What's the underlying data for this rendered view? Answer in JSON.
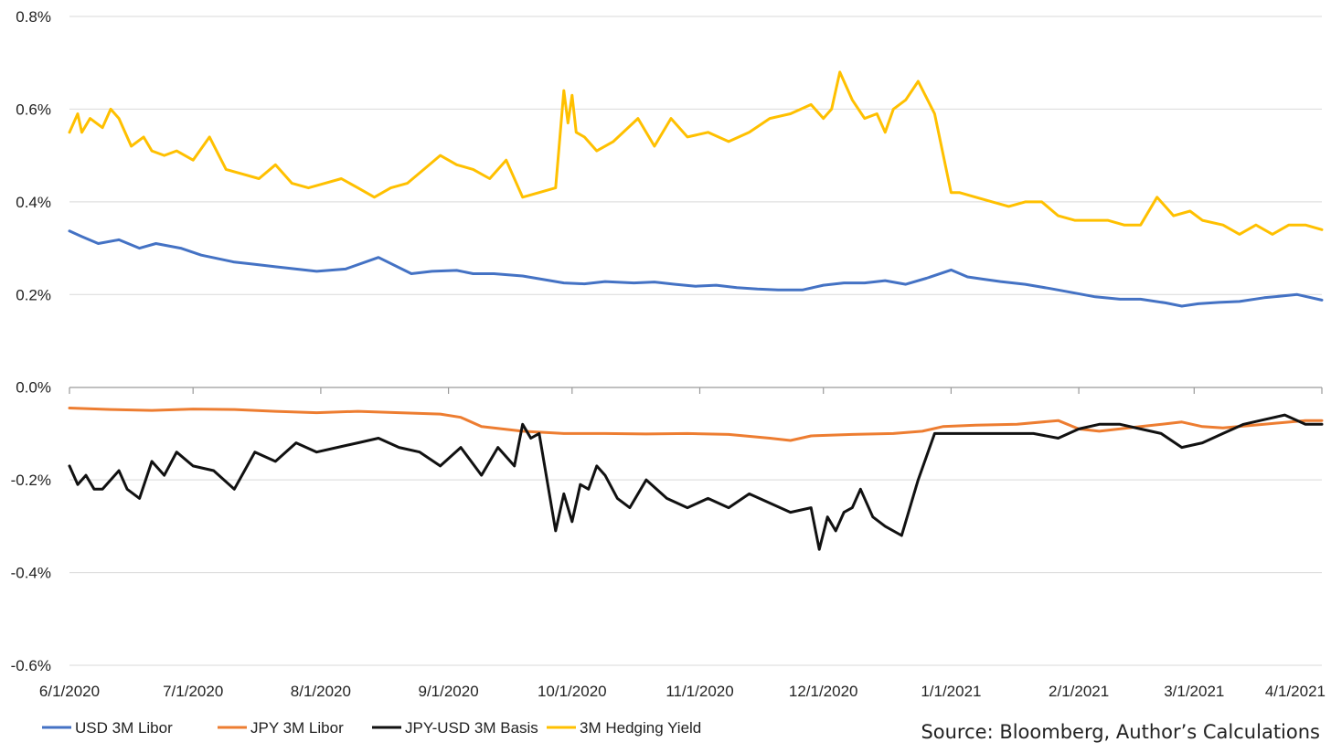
{
  "chart_data": {
    "type": "line",
    "title": "",
    "xlabel": "",
    "ylabel": "",
    "ylim": [
      -0.6,
      0.8
    ],
    "y_ticks": [
      "0.8%",
      "0.6%",
      "0.4%",
      "0.2%",
      "0.0%",
      "-0.2%",
      "-0.4%",
      "-0.6%"
    ],
    "y_tick_values": [
      0.8,
      0.6,
      0.4,
      0.2,
      0.0,
      -0.2,
      -0.4,
      -0.6
    ],
    "x_range": [
      0,
      304
    ],
    "x_ticks": [
      "6/1/2020",
      "7/1/2020",
      "8/1/2020",
      "9/1/2020",
      "10/1/2020",
      "11/1/2020",
      "12/1/2020",
      "1/1/2021",
      "2/1/2021",
      "3/1/2021",
      "4/1/2021"
    ],
    "x_tick_values": [
      0,
      30,
      61,
      92,
      122,
      153,
      183,
      214,
      245,
      273,
      304
    ],
    "grid": true,
    "legend_position": "bottom-left",
    "source": "Source: Bloomberg, Author’s Calculations",
    "series": [
      {
        "name": "USD 3M Libor",
        "color": "#4472C4",
        "x": [
          0,
          3,
          7,
          12,
          17,
          21,
          27,
          32,
          40,
          45,
          50,
          60,
          67,
          75,
          83,
          88,
          94,
          98,
          103,
          110,
          120,
          125,
          130,
          137,
          142,
          147,
          152,
          157,
          162,
          167,
          172,
          178,
          183,
          188,
          193,
          198,
          203,
          208,
          214,
          218,
          222,
          226,
          232,
          238,
          243,
          249,
          255,
          260,
          266,
          270,
          274,
          279,
          284,
          290,
          298,
          304
        ],
        "values": [
          0.337,
          0.325,
          0.31,
          0.318,
          0.3,
          0.31,
          0.3,
          0.285,
          0.27,
          0.265,
          0.26,
          0.25,
          0.255,
          0.28,
          0.245,
          0.25,
          0.252,
          0.245,
          0.245,
          0.24,
          0.225,
          0.223,
          0.228,
          0.225,
          0.227,
          0.222,
          0.218,
          0.22,
          0.215,
          0.212,
          0.21,
          0.21,
          0.22,
          0.225,
          0.225,
          0.23,
          0.222,
          0.235,
          0.253,
          0.238,
          0.233,
          0.228,
          0.222,
          0.213,
          0.205,
          0.195,
          0.19,
          0.19,
          0.182,
          0.175,
          0.18,
          0.183,
          0.185,
          0.193,
          0.2,
          0.188
        ]
      },
      {
        "name": "JPY 3M Libor",
        "color": "#ED7D31",
        "x": [
          0,
          10,
          20,
          30,
          40,
          50,
          60,
          70,
          80,
          90,
          95,
          100,
          110,
          120,
          130,
          140,
          150,
          160,
          170,
          175,
          180,
          190,
          200,
          207,
          212,
          220,
          230,
          240,
          245,
          250,
          260,
          270,
          275,
          280,
          290,
          300,
          304
        ],
        "values": [
          -0.045,
          -0.048,
          -0.05,
          -0.047,
          -0.048,
          -0.052,
          -0.055,
          -0.052,
          -0.055,
          -0.058,
          -0.065,
          -0.085,
          -0.095,
          -0.1,
          -0.1,
          -0.101,
          -0.1,
          -0.102,
          -0.11,
          -0.115,
          -0.105,
          -0.102,
          -0.1,
          -0.095,
          -0.085,
          -0.082,
          -0.08,
          -0.072,
          -0.09,
          -0.095,
          -0.085,
          -0.075,
          -0.085,
          -0.088,
          -0.08,
          -0.072,
          -0.072
        ]
      },
      {
        "name": "JPY-USD 3M Basis",
        "color": "#111111",
        "x": [
          0,
          2,
          4,
          6,
          8,
          12,
          14,
          17,
          20,
          23,
          26,
          30,
          35,
          40,
          45,
          50,
          55,
          60,
          65,
          70,
          75,
          80,
          85,
          90,
          95,
          100,
          104,
          108,
          110,
          112,
          114,
          118,
          120,
          122,
          124,
          126,
          128,
          130,
          133,
          136,
          140,
          145,
          150,
          155,
          160,
          165,
          170,
          175,
          180,
          182,
          184,
          186,
          188,
          190,
          192,
          195,
          198,
          202,
          206,
          210,
          214,
          218,
          222,
          228,
          234,
          240,
          245,
          250,
          255,
          260,
          265,
          270,
          275,
          280,
          285,
          290,
          295,
          300,
          304
        ],
        "values": [
          -0.17,
          -0.21,
          -0.19,
          -0.22,
          -0.22,
          -0.18,
          -0.22,
          -0.24,
          -0.16,
          -0.19,
          -0.14,
          -0.17,
          -0.18,
          -0.22,
          -0.14,
          -0.16,
          -0.12,
          -0.14,
          -0.13,
          -0.12,
          -0.11,
          -0.13,
          -0.14,
          -0.17,
          -0.13,
          -0.19,
          -0.13,
          -0.17,
          -0.08,
          -0.11,
          -0.1,
          -0.31,
          -0.23,
          -0.29,
          -0.21,
          -0.22,
          -0.17,
          -0.19,
          -0.24,
          -0.26,
          -0.2,
          -0.24,
          -0.26,
          -0.24,
          -0.26,
          -0.23,
          -0.25,
          -0.27,
          -0.26,
          -0.35,
          -0.28,
          -0.31,
          -0.27,
          -0.26,
          -0.22,
          -0.28,
          -0.3,
          -0.32,
          -0.2,
          -0.1,
          -0.1,
          -0.1,
          -0.1,
          -0.1,
          -0.1,
          -0.11,
          -0.09,
          -0.08,
          -0.08,
          -0.09,
          -0.1,
          -0.13,
          -0.12,
          -0.1,
          -0.08,
          -0.07,
          -0.06,
          -0.08,
          -0.08
        ]
      },
      {
        "name": "3M Hedging Yield",
        "color": "#FFC000",
        "x": [
          0,
          2,
          3,
          5,
          8,
          10,
          12,
          15,
          18,
          20,
          23,
          26,
          30,
          34,
          38,
          42,
          46,
          50,
          54,
          58,
          62,
          66,
          70,
          74,
          78,
          82,
          86,
          90,
          94,
          98,
          102,
          106,
          110,
          114,
          118,
          120,
          121,
          122,
          123,
          125,
          128,
          132,
          138,
          142,
          146,
          150,
          155,
          160,
          165,
          170,
          175,
          180,
          183,
          185,
          187,
          190,
          193,
          196,
          198,
          200,
          203,
          206,
          210,
          214,
          216,
          220,
          224,
          228,
          232,
          236,
          240,
          244,
          248,
          252,
          256,
          260,
          264,
          268,
          272,
          275,
          280,
          284,
          288,
          292,
          296,
          300,
          304
        ],
        "values": [
          0.55,
          0.59,
          0.55,
          0.58,
          0.56,
          0.6,
          0.58,
          0.52,
          0.54,
          0.51,
          0.5,
          0.51,
          0.49,
          0.54,
          0.47,
          0.46,
          0.45,
          0.48,
          0.44,
          0.43,
          0.44,
          0.45,
          0.43,
          0.41,
          0.43,
          0.44,
          0.47,
          0.5,
          0.48,
          0.47,
          0.45,
          0.49,
          0.41,
          0.42,
          0.43,
          0.64,
          0.57,
          0.63,
          0.55,
          0.54,
          0.51,
          0.53,
          0.58,
          0.52,
          0.58,
          0.54,
          0.55,
          0.53,
          0.55,
          0.58,
          0.59,
          0.61,
          0.58,
          0.6,
          0.68,
          0.62,
          0.58,
          0.59,
          0.55,
          0.6,
          0.62,
          0.66,
          0.59,
          0.42,
          0.42,
          0.41,
          0.4,
          0.39,
          0.4,
          0.4,
          0.37,
          0.36,
          0.36,
          0.36,
          0.35,
          0.35,
          0.41,
          0.37,
          0.38,
          0.36,
          0.35,
          0.33,
          0.35,
          0.33,
          0.35,
          0.35,
          0.34
        ]
      }
    ]
  }
}
